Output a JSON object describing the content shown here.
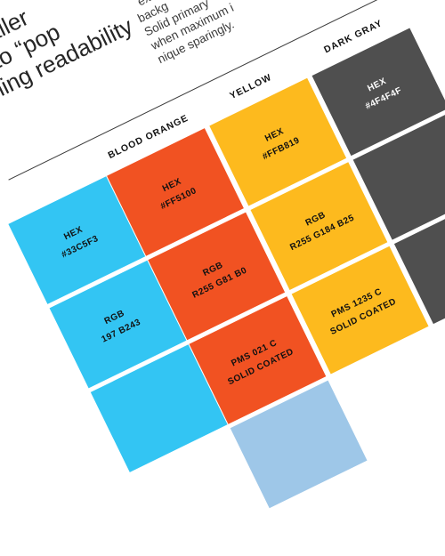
{
  "intro": {
    "heading_lines": [
      "aller",
      "nt to “pop",
      "ning readability"
    ],
    "body_lines": [
      "exce",
      "backg",
      "Solid primary",
      "when maximum i",
      "nique sparingly."
    ]
  },
  "columns": [
    {
      "name": "",
      "color": "#33C5F3",
      "text": "dark",
      "cells": [
        [
          "HEX",
          "#33C5F3"
        ],
        [
          "RGB",
          "197 B243"
        ],
        []
      ]
    },
    {
      "name": "BLOOD ORANGE",
      "color": "#F15222",
      "text": "dark",
      "cells": [
        [
          "HEX",
          "#FF5100"
        ],
        [
          "RGB",
          "R255 G81 B0"
        ],
        [
          "PMS 021 C",
          "SOLID COATED"
        ]
      ]
    },
    {
      "name": "YELLOW",
      "color": "#FDBA1E",
      "text": "dark",
      "cells": [
        [
          "HEX",
          "#FFB819"
        ],
        [
          "RGB",
          "R255 G184 B25"
        ],
        [
          "PMS 1235 C",
          "SOLID COATED"
        ]
      ]
    },
    {
      "name": "DARK GRAY",
      "color": "#4F4F4F",
      "text": "light",
      "cells": [
        [
          "HEX",
          "#4F4F4F"
        ],
        [],
        []
      ]
    }
  ],
  "extra_swatches": [
    {
      "color": "#F5A74E"
    },
    {
      "color": "#9EC7E8"
    }
  ],
  "colors": {
    "page_background": "#FFFFFF",
    "divider": "#3A3A3A",
    "gap": "#FFFFFF"
  }
}
